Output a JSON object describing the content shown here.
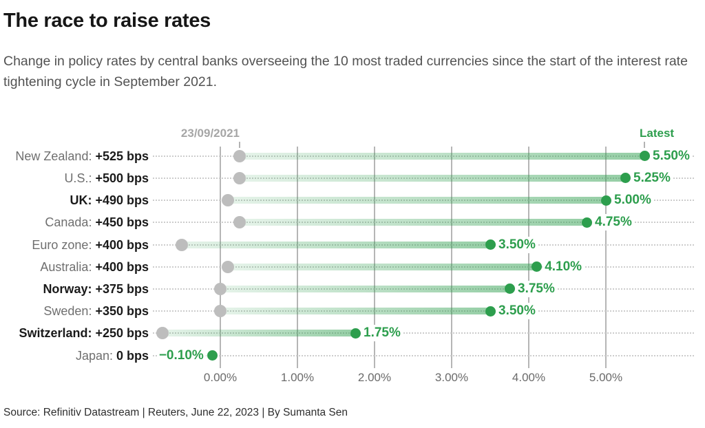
{
  "title": "The race to raise rates",
  "subtitle": "Change in policy rates by central banks overseeing the 10 most traded currencies since the start of the interest rate tightening cycle in September 2021.",
  "source": "Source: Refinitiv Datastream | Reuters, June 22, 2023 | By Sumanta Sen",
  "colors": {
    "green": "#2d9e4d",
    "bar_light": "rgba(45,158,77,0.12)",
    "bar_dark": "rgba(45,158,77,0.50)",
    "gray_dot": "#bdbdbd",
    "grid": "#b5b5b5",
    "leader": "#cccccc",
    "tick": "#b3b3b3",
    "label_gray": "#6f6f6f",
    "label_black": "#1a1a1a",
    "date_gray": "#a6a6a6",
    "axis_gray": "#6a6a6a",
    "title_color": "#161616",
    "subtitle_color": "#525252",
    "source_color": "#2d2d2d"
  },
  "chart_data": {
    "type": "bar",
    "variant": "dumbbell",
    "title": "The race to raise rates",
    "xlabel": "",
    "ylabel": "",
    "xlim": [
      -0.9,
      6.2
    ],
    "grid": "vertical",
    "start_date_label": "23/09/2021",
    "latest_label": "Latest",
    "x_ticks": [
      {
        "label": "0.00%",
        "value": 0
      },
      {
        "label": "1.00%",
        "value": 1
      },
      {
        "label": "2.00%",
        "value": 2
      },
      {
        "label": "3.00%",
        "value": 3
      },
      {
        "label": "4.00%",
        "value": 4
      },
      {
        "label": "5.00%",
        "value": 5
      }
    ],
    "rows": [
      {
        "label": "New Zealand:",
        "change_bps": "+525 bps",
        "bold": false,
        "start": 0.25,
        "latest": 5.5,
        "latest_label": "5.50%",
        "value_side": "right"
      },
      {
        "label": "U.S.:",
        "change_bps": "+500 bps",
        "bold": false,
        "start": 0.25,
        "latest": 5.25,
        "latest_label": "5.25%",
        "value_side": "right"
      },
      {
        "label": "UK:",
        "change_bps": "+490 bps",
        "bold": true,
        "start": 0.1,
        "latest": 5.0,
        "latest_label": "5.00%",
        "value_side": "right"
      },
      {
        "label": "Canada:",
        "change_bps": "+450 bps",
        "bold": false,
        "start": 0.25,
        "latest": 4.75,
        "latest_label": "4.75%",
        "value_side": "right"
      },
      {
        "label": "Euro zone:",
        "change_bps": "+400 bps",
        "bold": false,
        "start": -0.5,
        "latest": 3.5,
        "latest_label": "3.50%",
        "value_side": "right"
      },
      {
        "label": "Australia:",
        "change_bps": "+400 bps",
        "bold": false,
        "start": 0.1,
        "latest": 4.1,
        "latest_label": "4.10%",
        "value_side": "right"
      },
      {
        "label": "Norway:",
        "change_bps": "+375 bps",
        "bold": true,
        "start": 0.0,
        "latest": 3.75,
        "latest_label": "3.75%",
        "value_side": "right"
      },
      {
        "label": "Sweden:",
        "change_bps": "+350 bps",
        "bold": false,
        "start": 0.0,
        "latest": 3.5,
        "latest_label": "3.50%",
        "value_side": "right"
      },
      {
        "label": "Switzerland:",
        "change_bps": "+250 bps",
        "bold": true,
        "start": -0.75,
        "latest": 1.75,
        "latest_label": "1.75%",
        "value_side": "right"
      },
      {
        "label": "Japan:",
        "change_bps": "0 bps",
        "bold": false,
        "start": -0.1,
        "latest": -0.1,
        "latest_label": "−0.10%",
        "value_side": "left"
      }
    ]
  }
}
